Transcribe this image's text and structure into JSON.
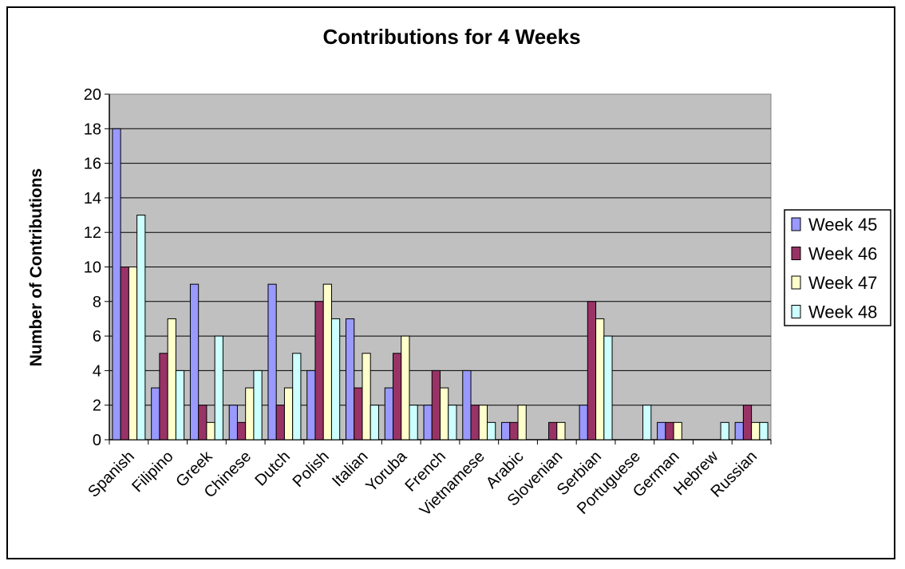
{
  "chart_data": {
    "type": "bar",
    "title": "Contributions for 4 Weeks",
    "xlabel": "",
    "ylabel": "Number of Contributions",
    "ylim": [
      0,
      20
    ],
    "yticks": [
      "0",
      "2",
      "4",
      "6",
      "8",
      "10",
      "12",
      "14",
      "16",
      "18",
      "20"
    ],
    "grid": true,
    "legend_position": "right",
    "plot_background": "#c0c0c0",
    "categories": [
      "Spanish",
      "Filipino",
      "Greek",
      "Chinese",
      "Dutch",
      "Polish",
      "Italian",
      "Yoruba",
      "French",
      "Vietnamese",
      "Arabic",
      "Slovenian",
      "Serbian",
      "Portuguese",
      "German",
      "Hebrew",
      "Russian"
    ],
    "series": [
      {
        "name": "Week 45",
        "color": "#9999ff",
        "values": [
          18,
          3,
          9,
          2,
          9,
          4,
          7,
          3,
          2,
          4,
          1,
          0,
          2,
          0,
          1,
          0,
          1
        ]
      },
      {
        "name": "Week 46",
        "color": "#993366",
        "values": [
          10,
          5,
          2,
          1,
          2,
          8,
          3,
          5,
          4,
          2,
          1,
          1,
          8,
          0,
          1,
          0,
          2
        ]
      },
      {
        "name": "Week 47",
        "color": "#ffffcc",
        "values": [
          10,
          7,
          1,
          3,
          3,
          9,
          5,
          6,
          3,
          2,
          2,
          1,
          7,
          0,
          1,
          0,
          1
        ]
      },
      {
        "name": "Week 48",
        "color": "#ccffff",
        "values": [
          13,
          4,
          6,
          4,
          5,
          7,
          2,
          2,
          2,
          1,
          0,
          0,
          6,
          2,
          0,
          1,
          1
        ]
      }
    ]
  }
}
